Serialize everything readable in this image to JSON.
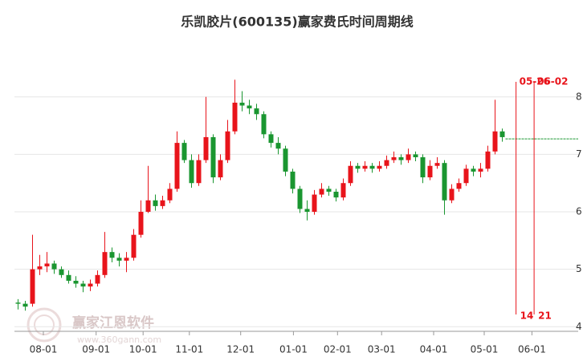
{
  "chart_data": {
    "type": "candlestick",
    "title": "乐凯胶片(600135)赢家费氏时间周期线",
    "watermark": "赢家江恩软件",
    "watermark_url": "www.360gann.com",
    "up_color": "#e8141b",
    "down_color": "#1a9630",
    "open": [
      4.42,
      4.4,
      4.4,
      5.0,
      5.05,
      5.1,
      5.0,
      4.9,
      4.8,
      4.75,
      4.7,
      4.75,
      4.9,
      5.3,
      5.2,
      5.15,
      5.2,
      5.6,
      6.0,
      6.2,
      6.1,
      6.2,
      6.4,
      7.2,
      6.9,
      6.5,
      6.9,
      7.3,
      6.6,
      6.9,
      7.4,
      7.9,
      7.85,
      7.8,
      7.7,
      7.35,
      7.2,
      7.1,
      6.7,
      6.4,
      6.05,
      6.0,
      6.3,
      6.4,
      6.35,
      6.25,
      6.5,
      6.8,
      6.75,
      6.8,
      6.75,
      6.8,
      6.9,
      6.95,
      6.9,
      7.0,
      6.95,
      6.6,
      6.8,
      6.85,
      6.2,
      6.4,
      6.5,
      6.75,
      6.7,
      6.75,
      7.05,
      7.4
    ],
    "high": [
      4.48,
      4.45,
      5.6,
      5.25,
      5.3,
      5.15,
      5.05,
      4.98,
      4.88,
      4.8,
      4.82,
      4.98,
      5.65,
      5.38,
      5.28,
      5.3,
      5.7,
      6.2,
      6.8,
      6.3,
      6.28,
      6.5,
      7.4,
      7.25,
      7.0,
      7.0,
      8.0,
      7.35,
      7.0,
      7.6,
      8.3,
      8.1,
      7.95,
      7.88,
      7.75,
      7.4,
      7.3,
      7.15,
      6.75,
      6.45,
      6.2,
      6.38,
      6.5,
      6.45,
      6.4,
      6.58,
      6.88,
      6.85,
      6.88,
      6.85,
      6.88,
      6.98,
      7.05,
      7.0,
      7.1,
      7.05,
      7.0,
      6.9,
      6.95,
      6.9,
      6.48,
      6.58,
      6.82,
      6.8,
      6.85,
      7.15,
      7.95,
      7.45
    ],
    "low": [
      4.3,
      4.28,
      4.35,
      4.9,
      4.95,
      4.92,
      4.85,
      4.75,
      4.68,
      4.6,
      4.62,
      4.7,
      4.85,
      5.12,
      5.05,
      4.95,
      5.15,
      5.55,
      5.98,
      6.02,
      6.05,
      6.15,
      6.35,
      6.85,
      6.42,
      6.45,
      6.85,
      6.5,
      6.55,
      6.85,
      7.35,
      7.75,
      7.7,
      7.6,
      7.28,
      7.12,
      7.0,
      6.62,
      6.32,
      5.98,
      5.85,
      5.95,
      6.25,
      6.28,
      6.18,
      6.2,
      6.45,
      6.68,
      6.7,
      6.68,
      6.7,
      6.75,
      6.85,
      6.82,
      6.85,
      6.88,
      6.5,
      6.55,
      6.75,
      5.95,
      6.15,
      6.35,
      6.45,
      6.62,
      6.6,
      6.7,
      7.0,
      7.22
    ],
    "close": [
      4.4,
      4.35,
      5.0,
      5.05,
      5.1,
      5.0,
      4.9,
      4.8,
      4.75,
      4.7,
      4.75,
      4.9,
      5.3,
      5.2,
      5.15,
      5.2,
      5.6,
      6.0,
      6.2,
      6.1,
      6.2,
      6.4,
      7.2,
      6.9,
      6.5,
      6.9,
      7.3,
      6.6,
      6.9,
      7.4,
      7.9,
      7.85,
      7.8,
      7.7,
      7.35,
      7.2,
      7.1,
      6.7,
      6.4,
      6.05,
      6.0,
      6.3,
      6.4,
      6.35,
      6.25,
      6.5,
      6.8,
      6.75,
      6.8,
      6.75,
      6.8,
      6.9,
      6.95,
      6.9,
      7.0,
      6.95,
      6.6,
      6.8,
      6.85,
      6.2,
      6.4,
      6.5,
      6.75,
      6.7,
      6.75,
      7.05,
      7.4,
      7.3
    ],
    "xlim": [
      -0.5,
      77.5
    ],
    "xticks": [
      {
        "value": 3.5,
        "label": "08-01"
      },
      {
        "value": 10.8,
        "label": "09-01"
      },
      {
        "value": 17.3,
        "label": "10-01"
      },
      {
        "value": 23.7,
        "label": "11-01"
      },
      {
        "value": 30.8,
        "label": "12-01"
      },
      {
        "value": 38.1,
        "label": "01-01"
      },
      {
        "value": 44.2,
        "label": "02-01"
      },
      {
        "value": 50.3,
        "label": "03-01"
      },
      {
        "value": 57.5,
        "label": "04-01"
      },
      {
        "value": 64.5,
        "label": "05-01"
      },
      {
        "value": 71.1,
        "label": "06-01"
      }
    ],
    "ylim": [
      3.92,
      8.5
    ],
    "yticks": [
      4,
      5,
      6,
      7,
      8
    ],
    "grid": true,
    "ref_line": {
      "value": 7.27,
      "color": "#1a9630"
    },
    "markers": [
      {
        "x": 68.9,
        "top": "05-26",
        "bottom": "14"
      },
      {
        "x": 71.4,
        "top": "06-02",
        "bottom": "21"
      }
    ],
    "marker_color": "#e8141b"
  }
}
